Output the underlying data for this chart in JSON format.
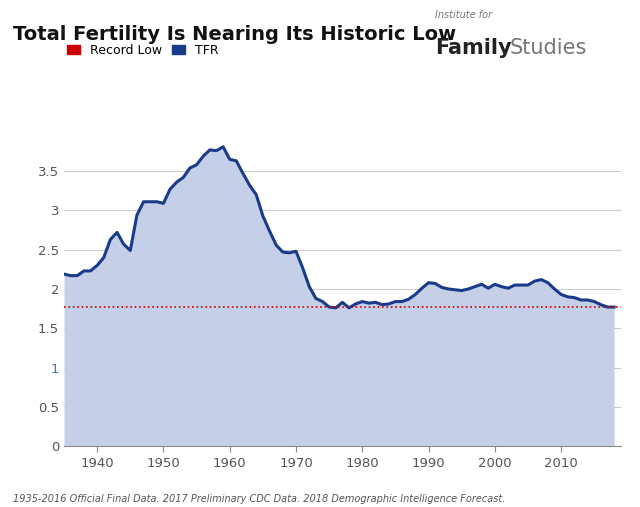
{
  "title": "Total Fertility Is Nearing Its Historic Low",
  "subtitle": "1935-2016 Official Final Data. 2017 Preliminary CDC Data. 2018 Demographic Intelligence Forecast.",
  "legend_items": [
    "Record Low",
    "TFR"
  ],
  "record_low": 1.765,
  "line_color": "#1a3a8a",
  "fill_color": "#c5cfe8",
  "fill_alpha": 1.0,
  "record_low_color": "#cc0000",
  "ylim": [
    0,
    4.0
  ],
  "yticks": [
    0,
    0.5,
    1,
    1.5,
    2,
    2.5,
    3,
    3.5
  ],
  "xlim": [
    1935,
    2019
  ],
  "xticks": [
    1940,
    1950,
    1960,
    1970,
    1980,
    1990,
    2000,
    2010
  ],
  "background_color": "#ffffff",
  "grid_color": "#cccccc",
  "years": [
    1935,
    1936,
    1937,
    1938,
    1939,
    1940,
    1941,
    1942,
    1943,
    1944,
    1945,
    1946,
    1947,
    1948,
    1949,
    1950,
    1951,
    1952,
    1953,
    1954,
    1955,
    1956,
    1957,
    1958,
    1959,
    1960,
    1961,
    1962,
    1963,
    1964,
    1965,
    1966,
    1967,
    1968,
    1969,
    1970,
    1971,
    1972,
    1973,
    1974,
    1975,
    1976,
    1977,
    1978,
    1979,
    1980,
    1981,
    1982,
    1983,
    1984,
    1985,
    1986,
    1987,
    1988,
    1989,
    1990,
    1991,
    1992,
    1993,
    1994,
    1995,
    1996,
    1997,
    1998,
    1999,
    2000,
    2001,
    2002,
    2003,
    2004,
    2005,
    2006,
    2007,
    2008,
    2009,
    2010,
    2011,
    2012,
    2013,
    2014,
    2015,
    2016,
    2017,
    2018
  ],
  "tfr": [
    2.19,
    2.17,
    2.17,
    2.23,
    2.23,
    2.3,
    2.4,
    2.63,
    2.72,
    2.57,
    2.49,
    2.94,
    3.11,
    3.11,
    3.11,
    3.09,
    3.27,
    3.36,
    3.42,
    3.54,
    3.58,
    3.69,
    3.77,
    3.76,
    3.81,
    3.65,
    3.63,
    3.47,
    3.32,
    3.2,
    2.93,
    2.74,
    2.56,
    2.47,
    2.46,
    2.48,
    2.27,
    2.03,
    1.88,
    1.84,
    1.77,
    1.76,
    1.83,
    1.76,
    1.81,
    1.84,
    1.82,
    1.83,
    1.8,
    1.81,
    1.84,
    1.84,
    1.87,
    1.93,
    2.01,
    2.08,
    2.07,
    2.02,
    2.0,
    1.99,
    1.98,
    2.0,
    2.03,
    2.06,
    2.01,
    2.06,
    2.03,
    2.01,
    2.05,
    2.05,
    2.05,
    2.1,
    2.12,
    2.08,
    2.0,
    1.93,
    1.9,
    1.89,
    1.86,
    1.86,
    1.84,
    1.8,
    1.77,
    1.77
  ],
  "ytick_color_1": "#4472c4",
  "logo_institute_for": "Institute for",
  "logo_family": "Family",
  "logo_studies": "Studies"
}
